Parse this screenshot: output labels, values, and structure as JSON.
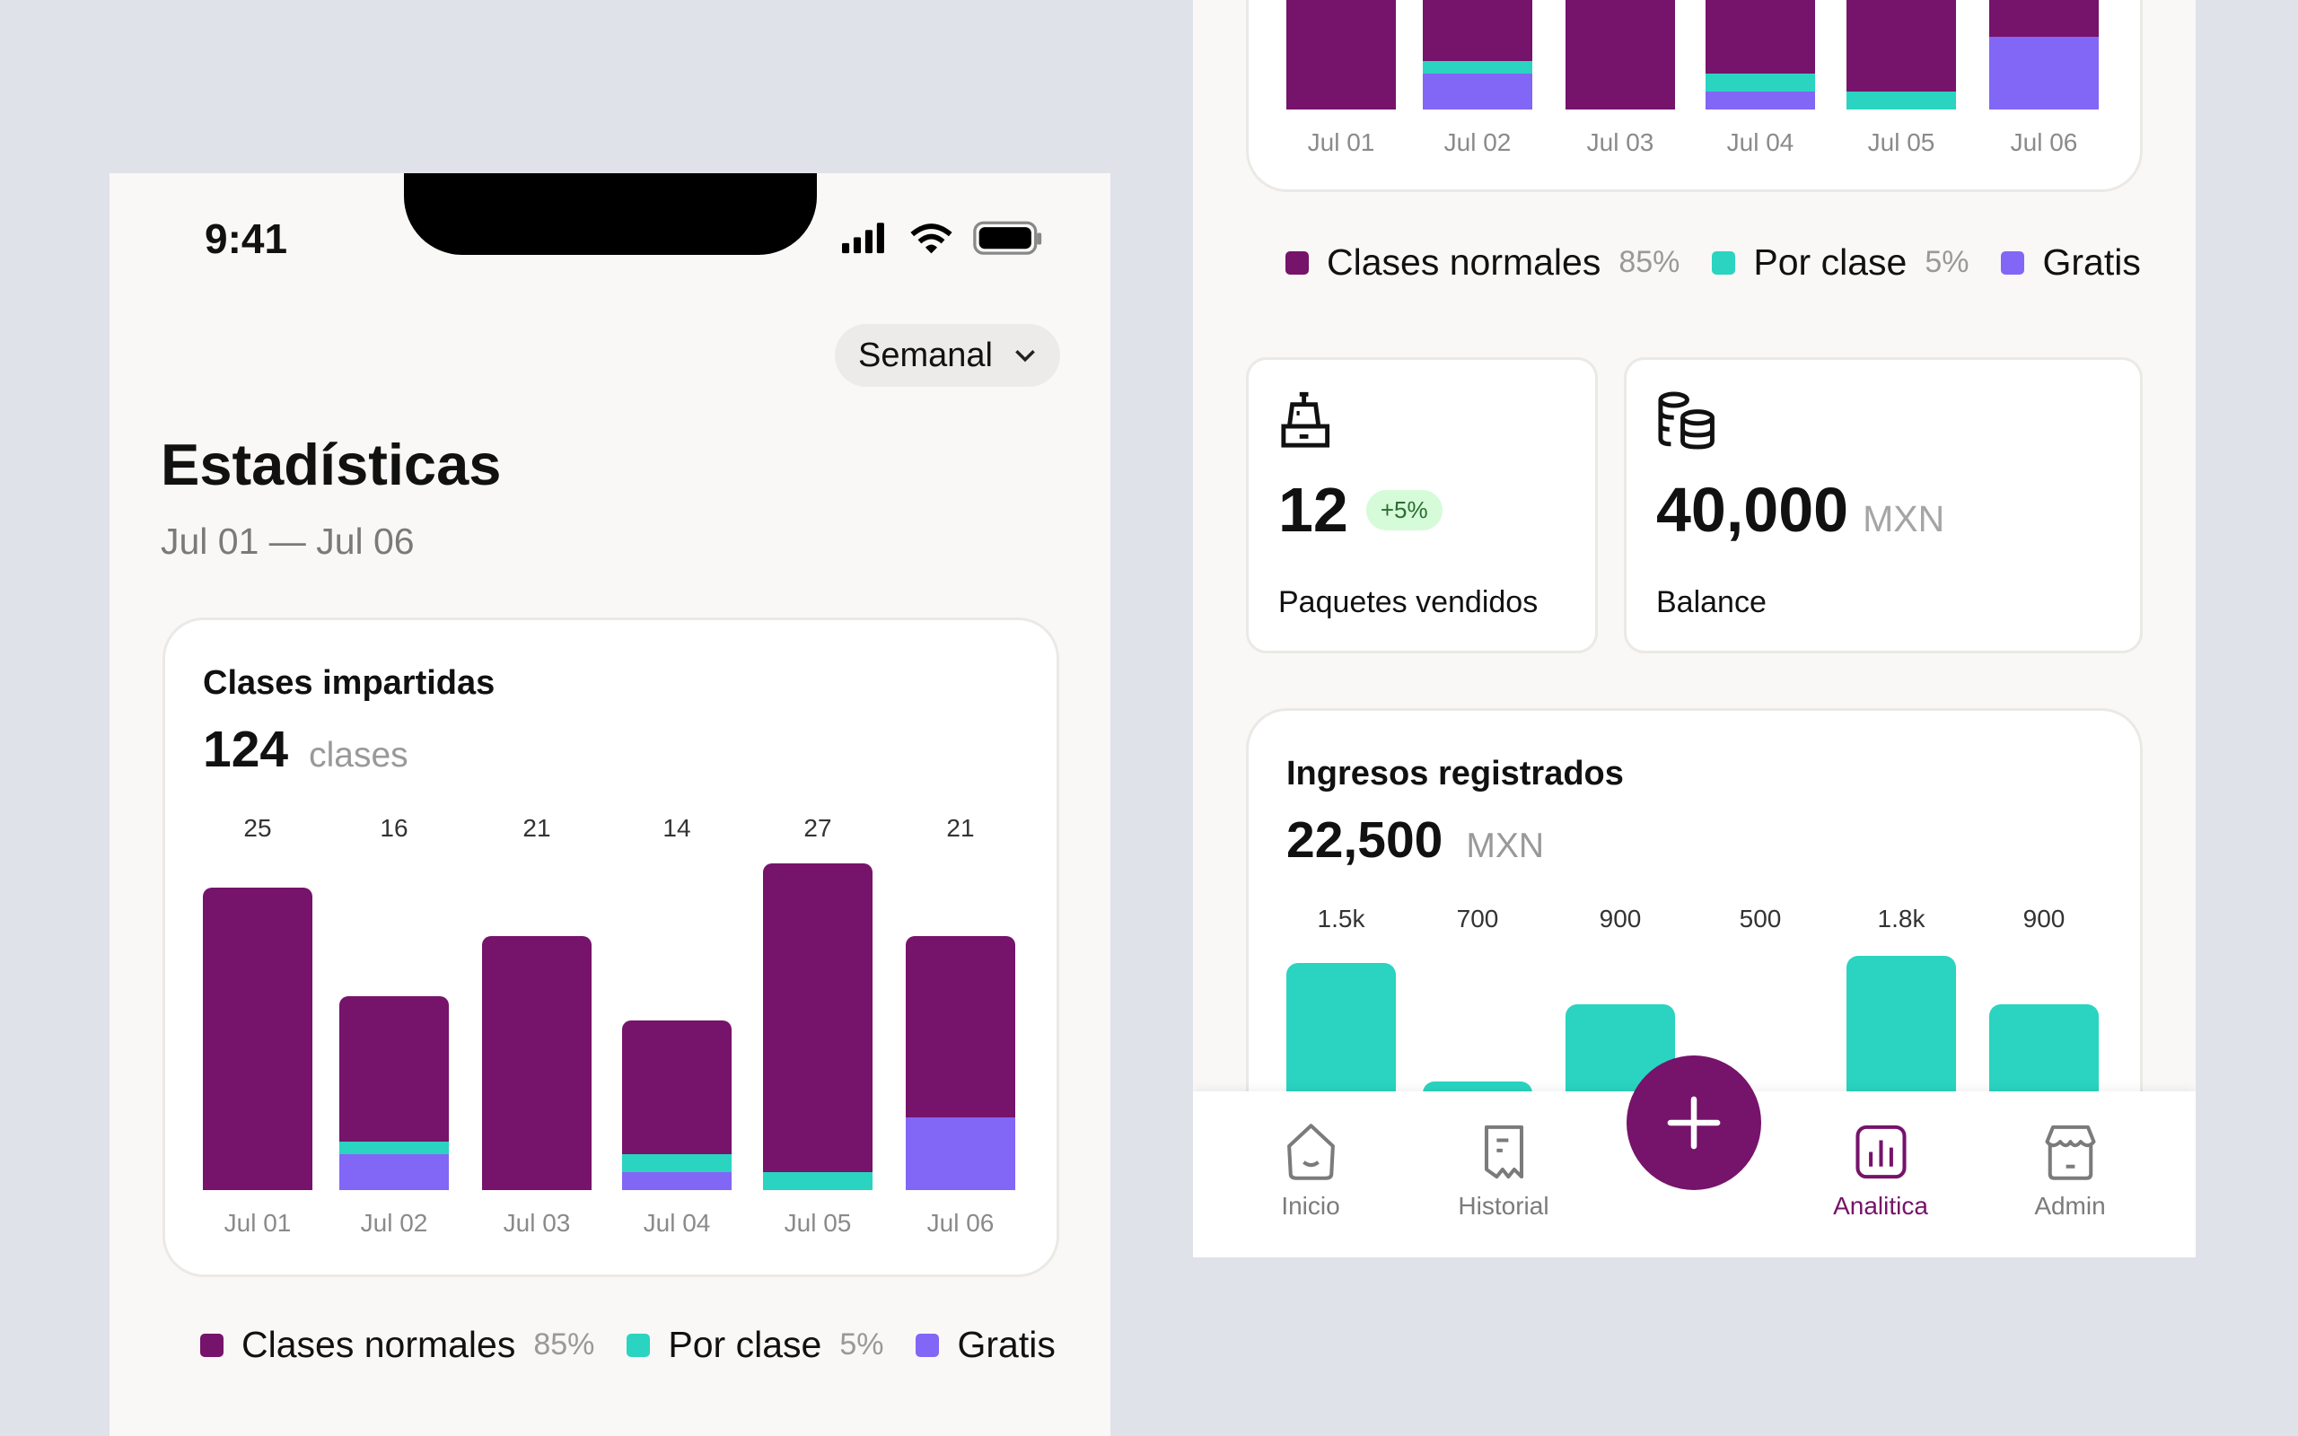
{
  "colors": {
    "purple": "#76136a",
    "teal": "#2ad4c0",
    "violet": "#8266f5",
    "badge_bg": "#d6fbd8",
    "badge_text": "#2c6b33"
  },
  "status_bar": {
    "time": "9:41",
    "icons": [
      "signal-icon",
      "wifi-icon",
      "battery-icon"
    ]
  },
  "header": {
    "period_select": "Semanal",
    "title": "Estadísticas",
    "date_range": "Jul 01 — Jul 06"
  },
  "classes_card": {
    "title": "Clases impartidas",
    "value": "124",
    "unit": "clases"
  },
  "legend": [
    {
      "label": "Clases normales",
      "pct": "85%",
      "color": "#76136a"
    },
    {
      "label": "Por clase",
      "pct": "5%",
      "color": "#2ad4c0"
    },
    {
      "label": "Gratis",
      "pct": "",
      "color": "#8266f5"
    }
  ],
  "chart_data": [
    {
      "type": "bar",
      "stacked": true,
      "title": "Clases impartidas",
      "categories": [
        "Jul 01",
        "Jul 02",
        "Jul 03",
        "Jul 04",
        "Jul 05",
        "Jul 06"
      ],
      "data_labels": [
        "25",
        "16",
        "21",
        "14",
        "27",
        "21"
      ],
      "series": [
        {
          "name": "Clases normales",
          "values": [
            25,
            12,
            21,
            11,
            25.5,
            15
          ]
        },
        {
          "name": "Por clase",
          "values": [
            0,
            1,
            0,
            1.5,
            1.5,
            0
          ]
        },
        {
          "name": "Gratis",
          "values": [
            0,
            3,
            0,
            1.5,
            0,
            6
          ]
        }
      ]
    },
    {
      "type": "bar",
      "title": "Ingresos registrados",
      "categories": [
        "Jul 01",
        "Jul 02",
        "Jul 03",
        "Jul 04",
        "Jul 05",
        "Jul 06"
      ],
      "data_labels": [
        "1.5k",
        "700",
        "900",
        "500",
        "1.8k",
        "900"
      ],
      "values": [
        1500,
        700,
        900,
        500,
        1800,
        900
      ]
    }
  ],
  "stats": {
    "packages": {
      "value": "12",
      "badge": "+5%",
      "label": "Paquetes vendidos",
      "icon": "cash-register-icon"
    },
    "balance": {
      "value": "40,000",
      "unit": "MXN",
      "label": "Balance",
      "icon": "coins-icon"
    }
  },
  "income_card": {
    "title": "Ingresos registrados",
    "value": "22,500",
    "unit": "MXN"
  },
  "nav": {
    "items": [
      {
        "label": "Inicio",
        "icon": "home-icon"
      },
      {
        "label": "Historial",
        "icon": "receipt-icon"
      },
      {
        "label": "Analitica",
        "icon": "chart-icon",
        "active": true
      },
      {
        "label": "Admin",
        "icon": "store-icon"
      }
    ],
    "fab": "plus-icon"
  }
}
